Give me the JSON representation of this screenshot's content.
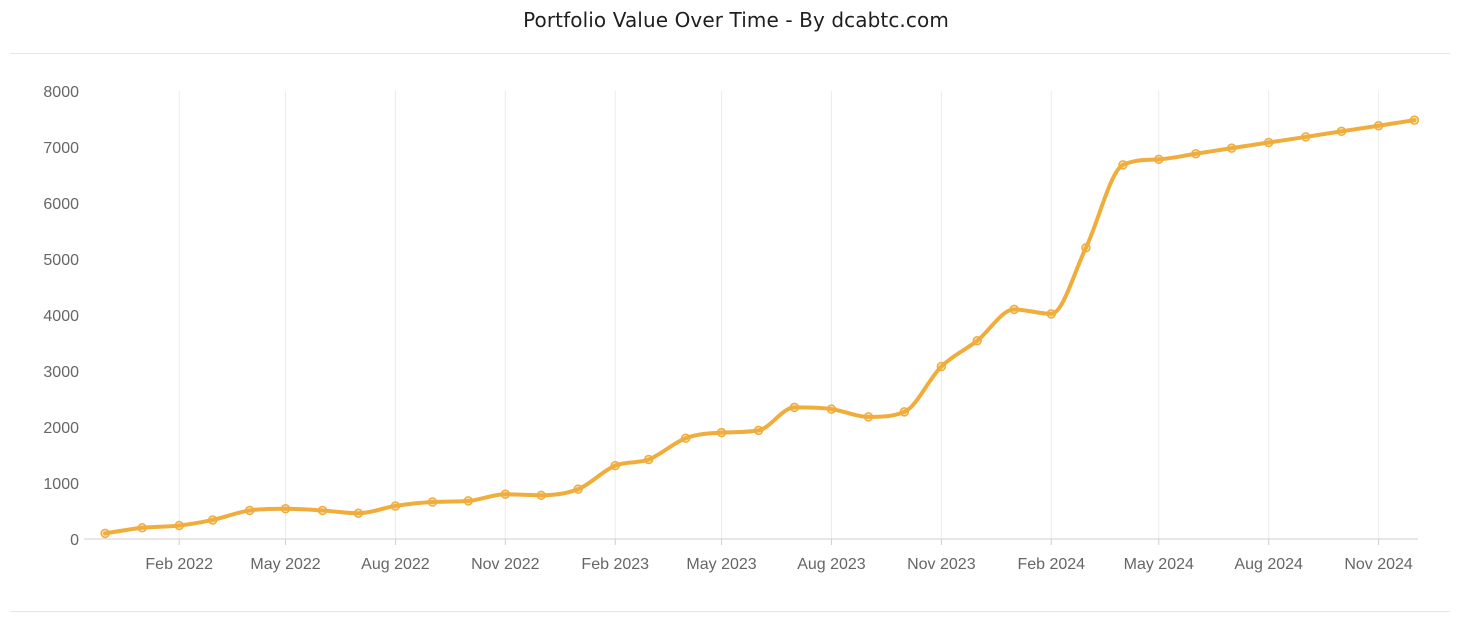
{
  "chart_data": {
    "type": "line",
    "title": "Portfolio Value Over Time - By dcabtc.com",
    "xlabel": "",
    "ylabel": "",
    "ylim": [
      0,
      8000
    ],
    "yticks": [
      0,
      1000,
      2000,
      3000,
      4000,
      5000,
      6000,
      7000,
      8000
    ],
    "xlim": [
      "2021-11-20",
      "2024-12-04"
    ],
    "xticks": [
      {
        "date": "2022-02-01",
        "label": "Feb 2022"
      },
      {
        "date": "2022-05-01",
        "label": "May 2022"
      },
      {
        "date": "2022-08-01",
        "label": "Aug 2022"
      },
      {
        "date": "2022-11-01",
        "label": "Nov 2022"
      },
      {
        "date": "2023-02-01",
        "label": "Feb 2023"
      },
      {
        "date": "2023-05-01",
        "label": "May 2023"
      },
      {
        "date": "2023-08-01",
        "label": "Aug 2023"
      },
      {
        "date": "2023-11-01",
        "label": "Nov 2023"
      },
      {
        "date": "2024-02-01",
        "label": "Feb 2024"
      },
      {
        "date": "2024-05-01",
        "label": "May 2024"
      },
      {
        "date": "2024-08-01",
        "label": "Aug 2024"
      },
      {
        "date": "2024-11-01",
        "label": "Nov 2024"
      }
    ],
    "grid": {
      "vertical": true,
      "horizontal": false
    },
    "legend": "none",
    "color": "#f0ad3c",
    "series": [
      {
        "points": [
          {
            "x": "2021-12-01",
            "y": 100
          },
          {
            "x": "2022-01-01",
            "y": 200
          },
          {
            "x": "2022-02-01",
            "y": 240
          },
          {
            "x": "2022-03-01",
            "y": 340
          },
          {
            "x": "2022-04-01",
            "y": 510
          },
          {
            "x": "2022-05-01",
            "y": 540
          },
          {
            "x": "2022-06-01",
            "y": 510
          },
          {
            "x": "2022-07-01",
            "y": 460
          },
          {
            "x": "2022-08-01",
            "y": 590
          },
          {
            "x": "2022-09-01",
            "y": 660
          },
          {
            "x": "2022-10-01",
            "y": 680
          },
          {
            "x": "2022-11-01",
            "y": 800
          },
          {
            "x": "2022-12-01",
            "y": 780
          },
          {
            "x": "2023-01-01",
            "y": 890
          },
          {
            "x": "2023-02-01",
            "y": 1310
          },
          {
            "x": "2023-03-01",
            "y": 1420
          },
          {
            "x": "2023-04-01",
            "y": 1800
          },
          {
            "x": "2023-05-01",
            "y": 1900
          },
          {
            "x": "2023-06-01",
            "y": 1940
          },
          {
            "x": "2023-07-01",
            "y": 2350
          },
          {
            "x": "2023-08-01",
            "y": 2320
          },
          {
            "x": "2023-09-01",
            "y": 2180
          },
          {
            "x": "2023-10-01",
            "y": 2270
          },
          {
            "x": "2023-11-01",
            "y": 3080
          },
          {
            "x": "2023-12-01",
            "y": 3540
          },
          {
            "x": "2024-01-01",
            "y": 4100
          },
          {
            "x": "2024-02-01",
            "y": 4020
          },
          {
            "x": "2024-03-01",
            "y": 5200
          },
          {
            "x": "2024-04-01",
            "y": 6680
          },
          {
            "x": "2024-05-01",
            "y": 6780
          },
          {
            "x": "2024-06-01",
            "y": 6880
          },
          {
            "x": "2024-07-01",
            "y": 6980
          },
          {
            "x": "2024-08-01",
            "y": 7080
          },
          {
            "x": "2024-09-01",
            "y": 7180
          },
          {
            "x": "2024-10-01",
            "y": 7280
          },
          {
            "x": "2024-11-01",
            "y": 7380
          },
          {
            "x": "2024-12-01",
            "y": 7480
          }
        ]
      }
    ]
  }
}
